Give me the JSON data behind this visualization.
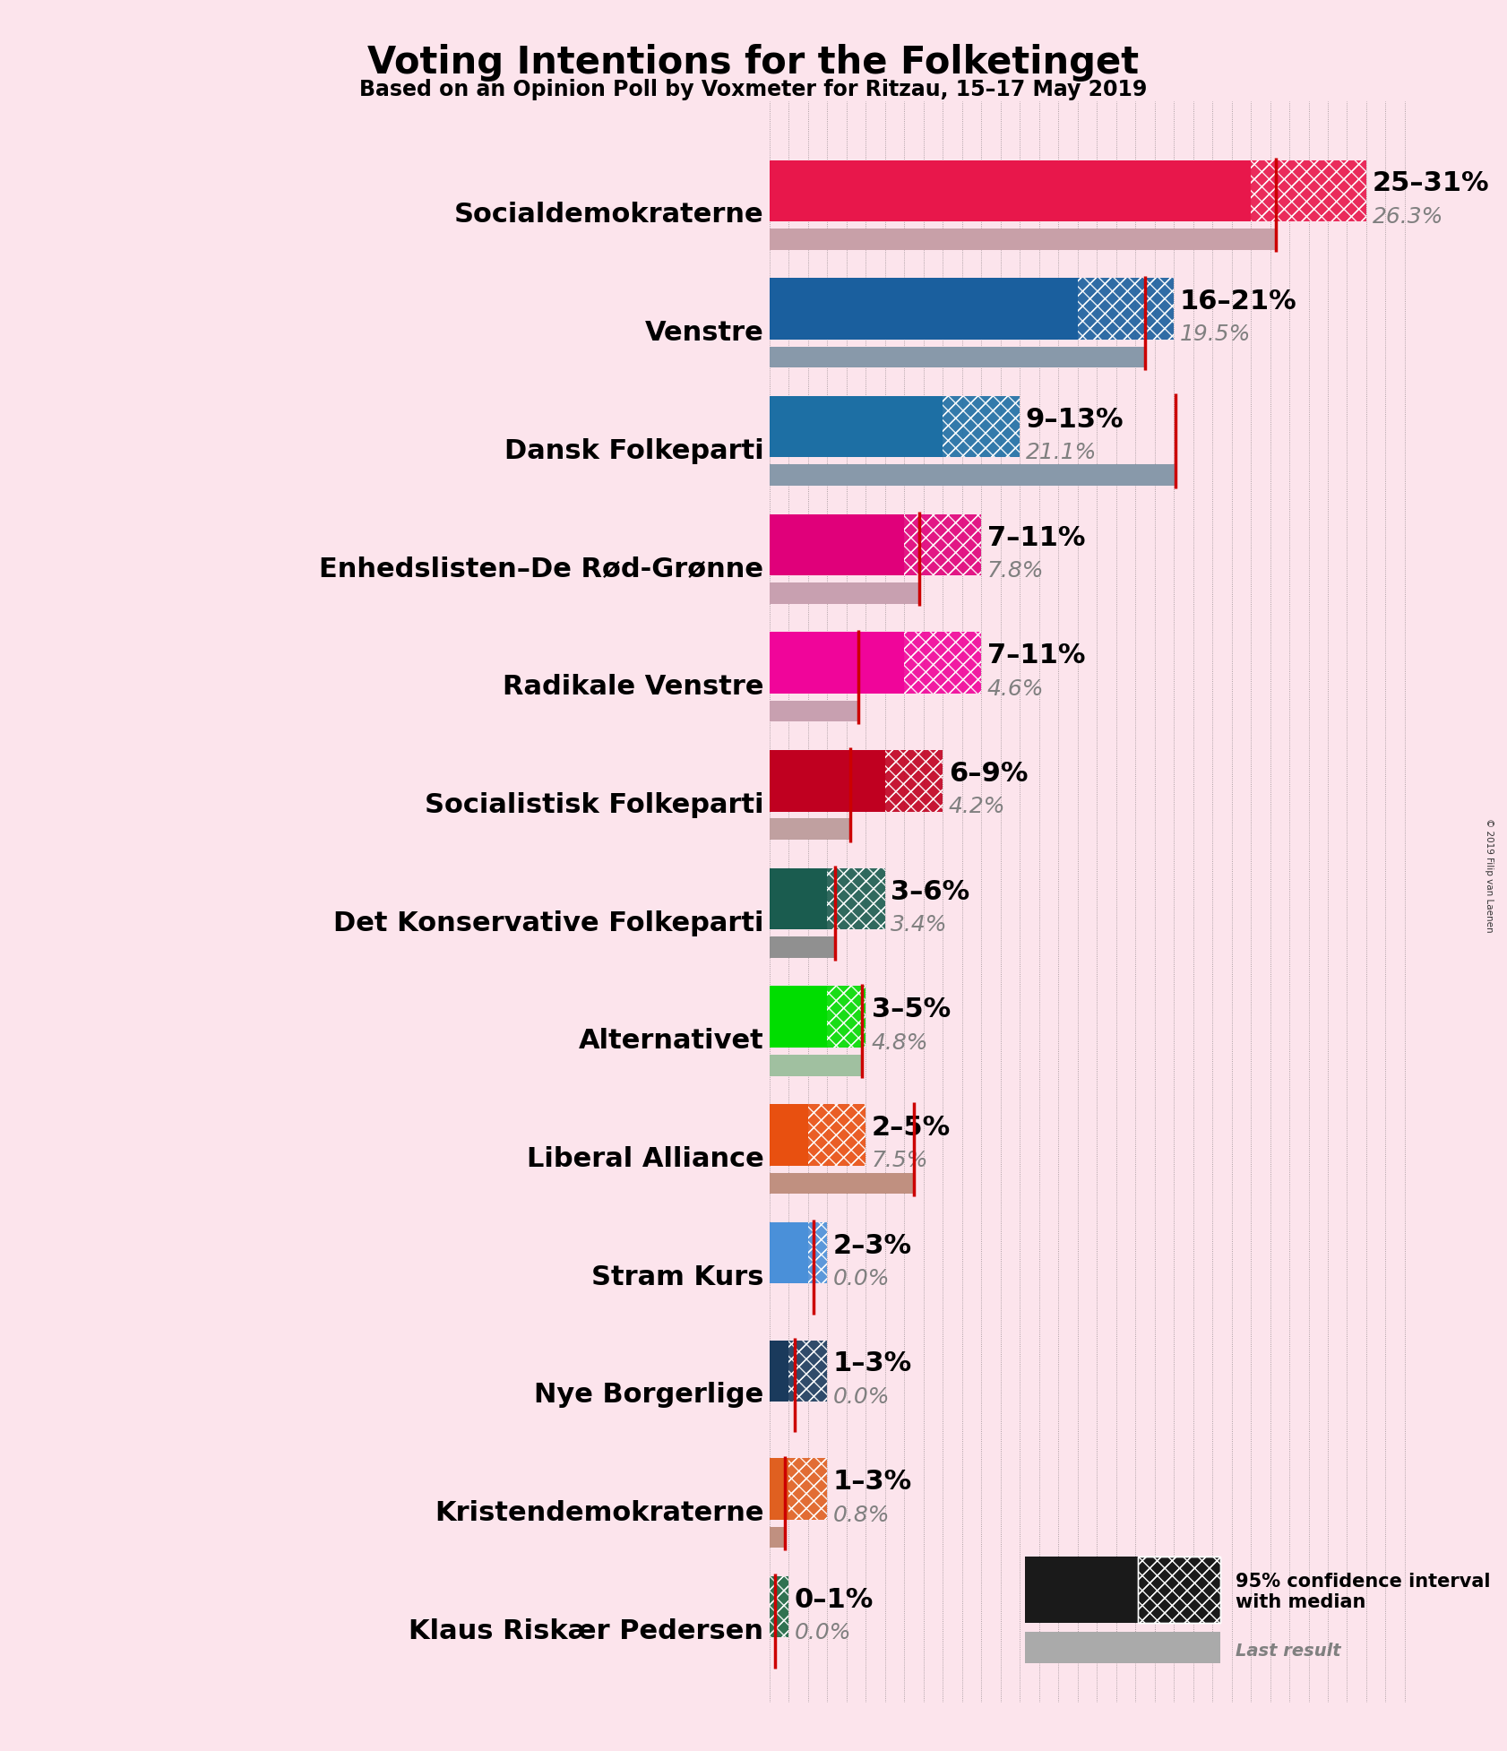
{
  "title": "Voting Intentions for the Folketinget",
  "subtitle": "Based on an Opinion Poll by Voxmeter for Ritzau, 15–17 May 2019",
  "background_color": "#fce4ec",
  "parties": [
    {
      "name": "Socialdemokraterne",
      "ci_low": 25,
      "ci_high": 31,
      "median": 26.3,
      "last_result": 26.3,
      "last_color": "#c8a0a8",
      "color": "#e8174b",
      "label": "25–31%",
      "label2": "26.3%"
    },
    {
      "name": "Venstre",
      "ci_low": 16,
      "ci_high": 21,
      "median": 19.5,
      "last_result": 19.5,
      "last_color": "#8899aa",
      "color": "#1a5f9e",
      "label": "16–21%",
      "label2": "19.5%"
    },
    {
      "name": "Dansk Folkeparti",
      "ci_low": 9,
      "ci_high": 13,
      "median": 21.1,
      "last_result": 21.1,
      "last_color": "#8899aa",
      "color": "#1d6fa4",
      "label": "9–13%",
      "label2": "21.1%"
    },
    {
      "name": "Enhedslisten–De Rød-Grønne",
      "ci_low": 7,
      "ci_high": 11,
      "median": 7.8,
      "last_result": 7.8,
      "last_color": "#c8a0b0",
      "color": "#e0007a",
      "label": "7–11%",
      "label2": "7.8%"
    },
    {
      "name": "Radikale Venstre",
      "ci_low": 7,
      "ci_high": 11,
      "median": 4.6,
      "last_result": 4.6,
      "last_color": "#c8a0b0",
      "color": "#f0059a",
      "label": "7–11%",
      "label2": "4.6%"
    },
    {
      "name": "Socialistisk Folkeparti",
      "ci_low": 6,
      "ci_high": 9,
      "median": 4.2,
      "last_result": 4.2,
      "last_color": "#c0a0a0",
      "color": "#c00020",
      "label": "6–9%",
      "label2": "4.2%"
    },
    {
      "name": "Det Konservative Folkeparti",
      "ci_low": 3,
      "ci_high": 6,
      "median": 3.4,
      "last_result": 3.4,
      "last_color": "#909090",
      "color": "#1a5c4f",
      "label": "3–6%",
      "label2": "3.4%"
    },
    {
      "name": "Alternativet",
      "ci_low": 3,
      "ci_high": 5,
      "median": 4.8,
      "last_result": 4.8,
      "last_color": "#a0c0a0",
      "color": "#00dd00",
      "label": "3–5%",
      "label2": "4.8%"
    },
    {
      "name": "Liberal Alliance",
      "ci_low": 2,
      "ci_high": 5,
      "median": 7.5,
      "last_result": 7.5,
      "last_color": "#c09080",
      "color": "#e85010",
      "label": "2–5%",
      "label2": "7.5%"
    },
    {
      "name": "Stram Kurs",
      "ci_low": 2,
      "ci_high": 3,
      "median": 0.0,
      "last_result": 0.0,
      "last_color": "#909090",
      "color": "#4a90d9",
      "label": "2–3%",
      "label2": "0.0%"
    },
    {
      "name": "Nye Borgerlige",
      "ci_low": 1,
      "ci_high": 3,
      "median": 0.0,
      "last_result": 0.0,
      "last_color": "#909090",
      "color": "#1a3a5c",
      "label": "1–3%",
      "label2": "0.0%"
    },
    {
      "name": "Kristendemokraterne",
      "ci_low": 1,
      "ci_high": 3,
      "median": 0.8,
      "last_result": 0.8,
      "last_color": "#c09080",
      "color": "#e06020",
      "label": "1–3%",
      "label2": "0.8%"
    },
    {
      "name": "Klaus Riskær Pedersen",
      "ci_low": 0,
      "ci_high": 1,
      "median": 0.0,
      "last_result": 0.0,
      "last_color": "#909090",
      "color": "#1a6640",
      "label": "0–1%",
      "label2": "0.0%"
    }
  ],
  "xlim": [
    0,
    34
  ],
  "median_line_color": "#cc0000",
  "title_fontsize": 30,
  "subtitle_fontsize": 17,
  "party_name_fontsize": 22,
  "label_fontsize": 22,
  "label2_fontsize": 18
}
